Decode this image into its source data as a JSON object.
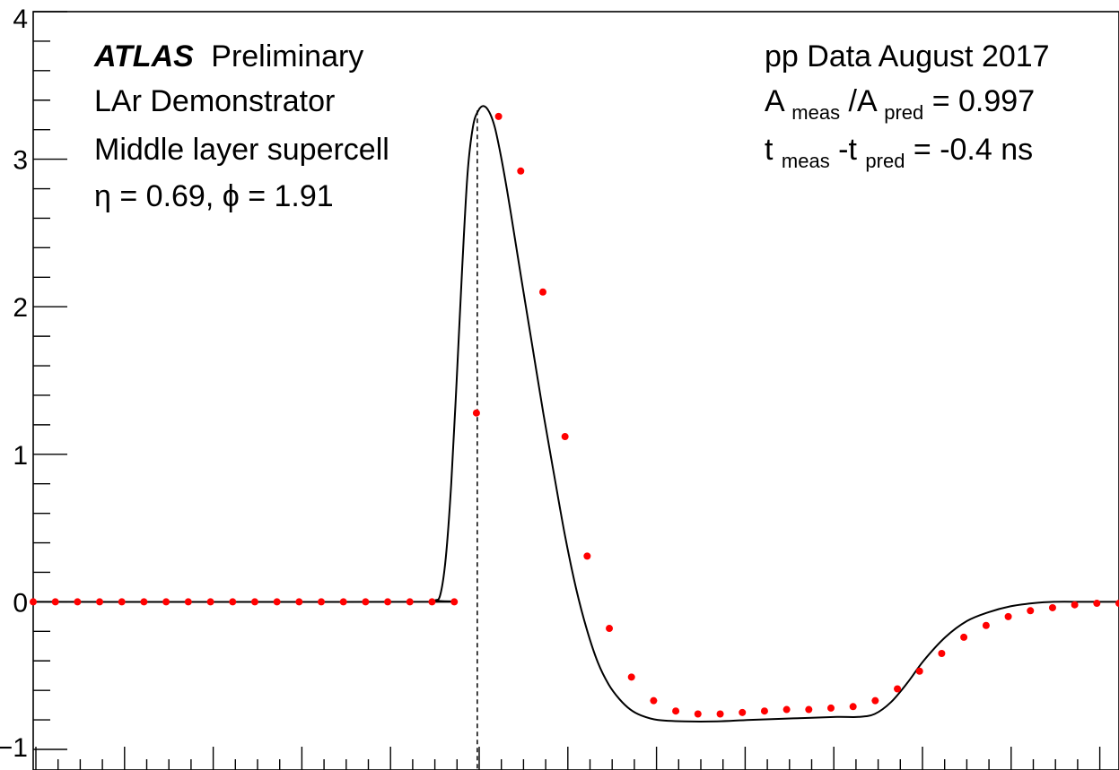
{
  "chart_data": {
    "type": "scatter",
    "title": "",
    "xlabel": "",
    "ylabel": "",
    "xlim": [
      0,
      1
    ],
    "ylim": [
      -1,
      4
    ],
    "yticks": [
      "−1",
      "0",
      "1",
      "2",
      "3",
      "4"
    ],
    "grid": false,
    "annotations_left": {
      "atlas": "ATLAS",
      "preliminary": "Preliminary",
      "line2": "LAr Demonstrator",
      "line3": "Middle layer supercell",
      "line4": "η = 0.69, ϕ = 1.91"
    },
    "annotations_right": {
      "line1": "pp Data August 2017",
      "ratio_A": "A",
      "ratio_meas_sub": "meas",
      "ratio_slash": "/A",
      "ratio_pred_sub": "pred",
      "ratio_value": " = 0.997",
      "time_t": "t",
      "time_meas_sub": "meas",
      "time_dash": "-t",
      "time_pred_sub": "pred",
      "time_value": " = -0.4 ns"
    },
    "peak_marker_x": 0.409,
    "series": [
      {
        "kind": "points",
        "color": "#ff0000",
        "x": [
          0.0,
          0.0204,
          0.0408,
          0.0612,
          0.0816,
          0.102,
          0.1224,
          0.1428,
          0.1633,
          0.1837,
          0.2041,
          0.2245,
          0.2449,
          0.2653,
          0.2857,
          0.3061,
          0.3265,
          0.3469,
          0.3673,
          0.3878,
          0.4082,
          0.4286,
          0.449,
          0.4694,
          0.4898,
          0.5102,
          0.5306,
          0.551,
          0.5714,
          0.5918,
          0.6122,
          0.6327,
          0.6531,
          0.6735,
          0.6939,
          0.7143,
          0.7347,
          0.7551,
          0.7755,
          0.7959,
          0.8163,
          0.8367,
          0.8571,
          0.8776,
          0.898,
          0.9184,
          0.9388,
          0.9592,
          0.9796,
          1.0
        ],
        "y": [
          0.0,
          0.0,
          0.0,
          0.0,
          0.0,
          0.0,
          0.0,
          0.0,
          0.0,
          0.0,
          0.0,
          0.0,
          0.0,
          0.0,
          0.0,
          0.0,
          0.0,
          0.0,
          0.0,
          0.0,
          1.28,
          3.29,
          2.92,
          2.1,
          1.12,
          0.31,
          -0.18,
          -0.51,
          -0.67,
          -0.74,
          -0.76,
          -0.76,
          -0.75,
          -0.74,
          -0.73,
          -0.73,
          -0.72,
          -0.71,
          -0.67,
          -0.59,
          -0.47,
          -0.35,
          -0.24,
          -0.16,
          -0.1,
          -0.06,
          -0.04,
          -0.02,
          -0.01,
          -0.01
        ]
      },
      {
        "kind": "line",
        "color": "#000000",
        "x": [
          0.0,
          0.36,
          0.37,
          0.375,
          0.38,
          0.385,
          0.39,
          0.395,
          0.4,
          0.405,
          0.41,
          0.415,
          0.42,
          0.425,
          0.43,
          0.435,
          0.44,
          0.45,
          0.46,
          0.47,
          0.48,
          0.49,
          0.5,
          0.51,
          0.52,
          0.53,
          0.54,
          0.55,
          0.56,
          0.575,
          0.6,
          0.63,
          0.66,
          0.7,
          0.74,
          0.76,
          0.775,
          0.79,
          0.805,
          0.82,
          0.84,
          0.86,
          0.88,
          0.9,
          0.92,
          0.94,
          0.97,
          1.0
        ],
        "y": [
          0.0,
          0.0,
          0.01,
          0.05,
          0.3,
          0.8,
          1.5,
          2.25,
          2.9,
          3.22,
          3.33,
          3.36,
          3.32,
          3.22,
          3.05,
          2.85,
          2.63,
          2.17,
          1.72,
          1.27,
          0.85,
          0.44,
          0.09,
          -0.19,
          -0.41,
          -0.56,
          -0.66,
          -0.73,
          -0.77,
          -0.8,
          -0.81,
          -0.81,
          -0.8,
          -0.79,
          -0.78,
          -0.78,
          -0.76,
          -0.68,
          -0.55,
          -0.4,
          -0.24,
          -0.13,
          -0.07,
          -0.03,
          -0.01,
          0.0,
          0.0,
          0.0
        ]
      }
    ]
  }
}
